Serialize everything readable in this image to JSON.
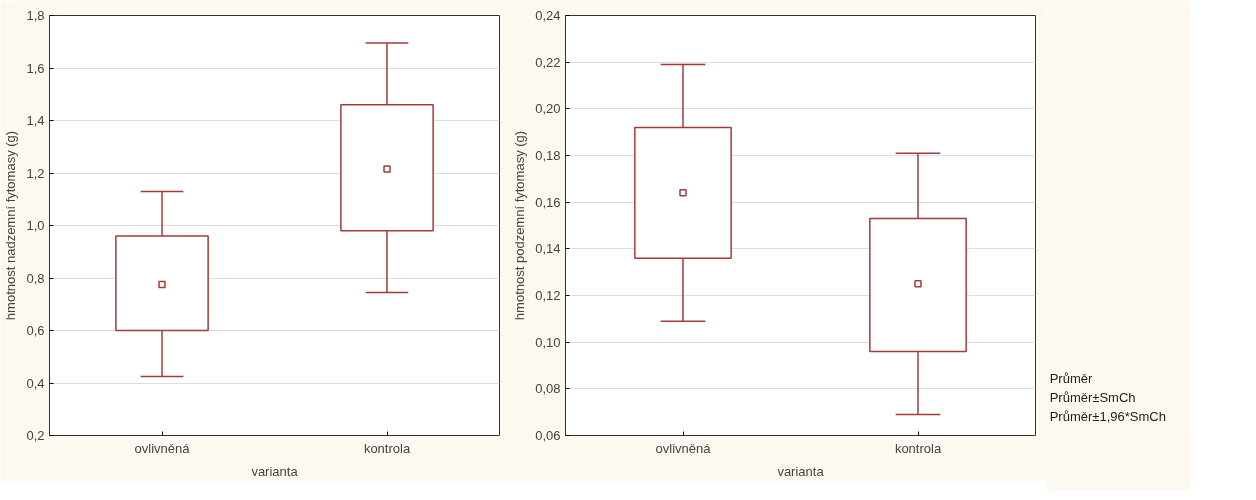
{
  "chart_data": [
    {
      "type": "box",
      "categories": [
        "ovlivněná",
        "kontrola"
      ],
      "xlabel": "varianta",
      "ylabel": "hmotnost nadzemní fytomasy (g)",
      "color": "#a33b3b",
      "grid": "y",
      "boxes": [
        {
          "low": 0.425,
          "q1": 0.6,
          "median": 0.775,
          "q3": 0.96,
          "high": 1.13
        },
        {
          "low": 0.745,
          "q1": 0.98,
          "median": 1.215,
          "q3": 1.46,
          "high": 1.695
        }
      ],
      "ylim": [
        0.2,
        1.8
      ],
      "yticks": [
        {
          "value": 0.2,
          "label": "0,2"
        },
        {
          "value": 0.4,
          "label": "0,4"
        },
        {
          "value": 0.6,
          "label": "0,6"
        },
        {
          "value": 0.8,
          "label": "0,8"
        },
        {
          "value": 1.0,
          "label": "1,0"
        },
        {
          "value": 1.2,
          "label": "1,2"
        },
        {
          "value": 1.4,
          "label": "1,4"
        },
        {
          "value": 1.6,
          "label": "1,6"
        },
        {
          "value": 1.8,
          "label": "1,8"
        }
      ]
    },
    {
      "type": "box",
      "categories": [
        "ovlivněná",
        "kontrola"
      ],
      "xlabel": "varianta",
      "ylabel": "hmotnost podzemní fytomasy (g)",
      "color": "#a33b3b",
      "grid": "y",
      "annotations": [
        "Průměr",
        "Průměr±SmCh",
        "Průměr±1,96*SmCh"
      ],
      "boxes": [
        {
          "low": 0.109,
          "q1": 0.136,
          "median": 0.164,
          "q3": 0.192,
          "high": 0.219
        },
        {
          "low": 0.069,
          "q1": 0.096,
          "median": 0.125,
          "q3": 0.153,
          "high": 0.181
        }
      ],
      "ylim": [
        0.06,
        0.24
      ],
      "yticks": [
        {
          "value": 0.06,
          "label": "0,06"
        },
        {
          "value": 0.08,
          "label": "0,08"
        },
        {
          "value": 0.1,
          "label": "0,10"
        },
        {
          "value": 0.12,
          "label": "0,12"
        },
        {
          "value": 0.14,
          "label": "0,14"
        },
        {
          "value": 0.16,
          "label": "0,16"
        },
        {
          "value": 0.18,
          "label": "0,18"
        },
        {
          "value": 0.2,
          "label": "0,20"
        },
        {
          "value": 0.22,
          "label": "0,22"
        },
        {
          "value": 0.24,
          "label": "0,24"
        }
      ]
    }
  ]
}
